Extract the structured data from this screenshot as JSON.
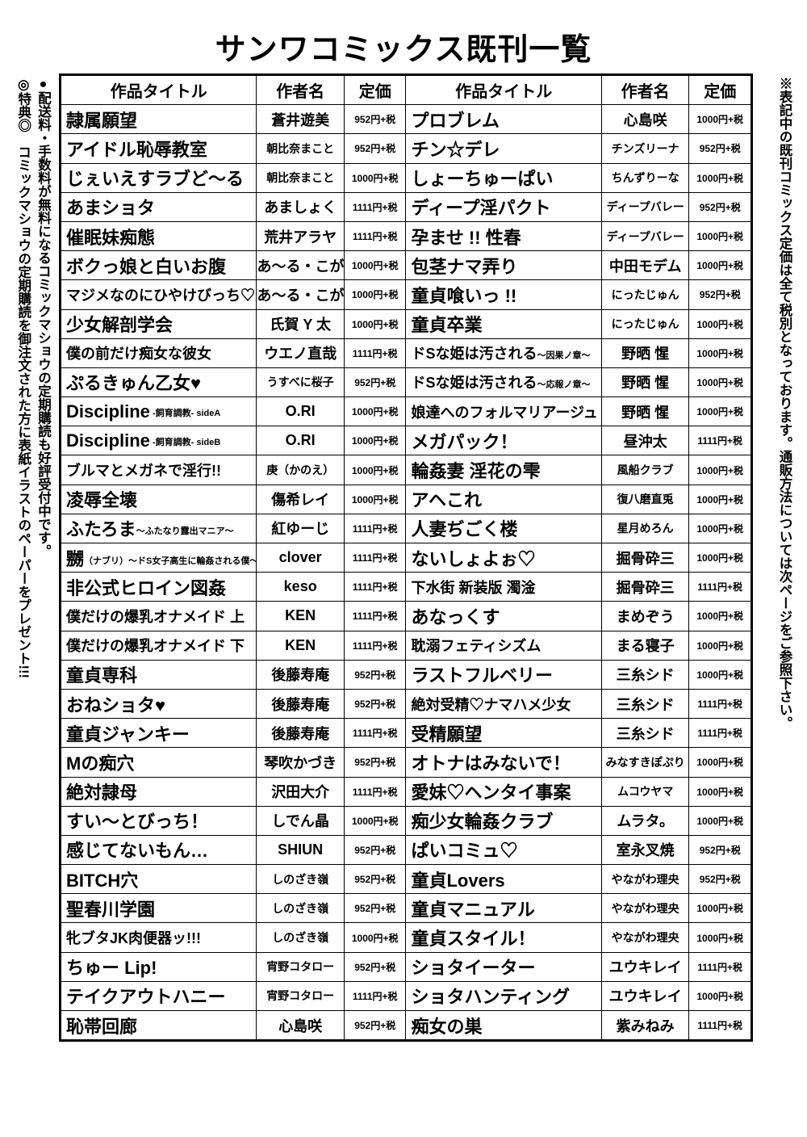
{
  "page_title": "サンワコミックス既刊一覧",
  "headers": {
    "title": "作品タイトル",
    "author": "作者名",
    "price": "定価"
  },
  "left_note_line1": "●配送料・手数料が無料になるコミックマショウの定期購読も好評受付中です。",
  "left_note_line2": "◎特典◎　コミックマショウの定期購読を御注文された方に表紙イラストのペーパーをプレゼント!!!",
  "right_note": "※表記中の既刊コミックス定価は全て税別となっております。通販方法については次ページをご参照下さい。",
  "rows": [
    {
      "l_title": "隷属願望",
      "l_author": "蒼井遊美",
      "l_price": "952円+税",
      "r_title": "プロブレム",
      "r_author": "心島咲",
      "r_price": "1000円+税"
    },
    {
      "l_title": "アイドル恥辱教室",
      "l_author": "朝比奈まこと",
      "l_author_small": true,
      "l_price": "952円+税",
      "r_title": "チン☆デレ",
      "r_author": "チンズリーナ",
      "r_author_small": true,
      "r_price": "952円+税"
    },
    {
      "l_title": "じぇいえすラブど～る",
      "l_author": "朝比奈まこと",
      "l_author_small": true,
      "l_price": "1000円+税",
      "r_title": "しょーちゅーぱい",
      "r_author": "ちんずりーな",
      "r_author_small": true,
      "r_price": "1000円+税"
    },
    {
      "l_title": "あまショタ",
      "l_author": "あましょく",
      "l_price": "1111円+税",
      "r_title": "ディープ淫パクト",
      "r_author": "ディープバレー",
      "r_author_small": true,
      "r_price": "952円+税"
    },
    {
      "l_title": "催眠妹痴態",
      "l_author": "荒井アラヤ",
      "l_price": "1111円+税",
      "r_title": "孕ませ !! 性春",
      "r_author": "ディープバレー",
      "r_author_small": true,
      "r_price": "1000円+税"
    },
    {
      "l_title": "ボクっ娘と白いお腹",
      "l_author": "あ～る・こが",
      "l_price": "1000円+税",
      "r_title": "包茎ナマ弄り",
      "r_author": "中田モデム",
      "r_price": "1000円+税"
    },
    {
      "l_title": "マジメなのにひやけびっち♡",
      "l_title_small": true,
      "l_author": "あ～る・こが",
      "l_price": "1000円+税",
      "r_title": "童貞喰いっ !!",
      "r_author": "にったじゅん",
      "r_author_small": true,
      "r_price": "952円+税"
    },
    {
      "l_title": "少女解剖学会",
      "l_author": "氏賀 Y 太",
      "l_price": "1000円+税",
      "r_title": "童貞卒業",
      "r_author": "にったじゅん",
      "r_author_small": true,
      "r_price": "1000円+税"
    },
    {
      "l_title": "僕の前だけ痴女な彼女",
      "l_title_small": true,
      "l_author": "ウエノ直哉",
      "l_price": "1111円+税",
      "r_title": "ドSな姫は汚される",
      "r_sub": "～因果ノ章～",
      "r_title_small": true,
      "r_author": "野晒 惺",
      "r_price": "1000円+税"
    },
    {
      "l_title": "ぷるきゅん乙女♥",
      "l_author": "うすべに桜子",
      "l_author_small": true,
      "l_price": "952円+税",
      "r_title": "ドSな姫は汚される",
      "r_sub": "～応報ノ章～",
      "r_title_small": true,
      "r_author": "野晒 惺",
      "r_price": "1000円+税"
    },
    {
      "l_title": "Discipline",
      "l_sub": " -飼育調教- sideA",
      "l_author": "O.RI",
      "l_price": "1000円+税",
      "r_title": "娘達へのフォルマリアージュ",
      "r_title_small": true,
      "r_author": "野晒 惺",
      "r_price": "1000円+税"
    },
    {
      "l_title": "Discipline",
      "l_sub": " -飼育調教- sideB",
      "l_author": "O.RI",
      "l_price": "1000円+税",
      "r_title": "メガパック！",
      "r_author": "昼沖太",
      "r_price": "1111円+税"
    },
    {
      "l_title": "ブルマとメガネで淫行!!",
      "l_title_small": true,
      "l_author": "庚（かのえ）",
      "l_author_small": true,
      "l_price": "1000円+税",
      "r_title": "輪姦妻 淫花の雫",
      "r_author": "風船クラブ",
      "r_author_small": true,
      "r_price": "1000円+税"
    },
    {
      "l_title": "凌辱全壊",
      "l_author": "傷希レイ",
      "l_price": "1000円+税",
      "r_title": "アヘこれ",
      "r_author": "復八磨直兎",
      "r_author_small": true,
      "r_price": "1000円+税"
    },
    {
      "l_title": "ふたろま",
      "l_sub": "～ふたなり露出マニア～",
      "l_author": "紅ゆーじ",
      "l_price": "1111円+税",
      "r_title": "人妻ぢごく楼",
      "r_author": "星月めろん",
      "r_author_small": true,
      "r_price": "1000円+税"
    },
    {
      "l_title": "嬲",
      "l_sub": "（ナブリ）～ドS女子高生に輪姦される僕～",
      "l_author": "clover",
      "l_price": "1111円+税",
      "r_title": "ないしょよぉ♡",
      "r_author": "掘骨砕三",
      "r_price": "1000円+税"
    },
    {
      "l_title": "非公式ヒロイン図姦",
      "l_author": "keso",
      "l_price": "1111円+税",
      "r_title": "下水街 新装版 濁淦",
      "r_title_small": true,
      "r_author": "掘骨砕三",
      "r_price": "1111円+税"
    },
    {
      "l_title": "僕だけの爆乳オナメイド 上",
      "l_title_small": true,
      "l_author": "KEN",
      "l_price": "1111円+税",
      "r_title": "あなっくす",
      "r_author": "まめぞう",
      "r_price": "1000円+税"
    },
    {
      "l_title": "僕だけの爆乳オナメイド 下",
      "l_title_small": true,
      "l_author": "KEN",
      "l_price": "1111円+税",
      "r_title": "耽溺フェティシズム",
      "r_title_small": true,
      "r_author": "まる寝子",
      "r_price": "1000円+税"
    },
    {
      "l_title": "童貞専科",
      "l_author": "後藤寿庵",
      "l_price": "952円+税",
      "r_title": "ラストフルベリー",
      "r_author": "三糸シド",
      "r_price": "1000円+税"
    },
    {
      "l_title": "おねショタ♥",
      "l_author": "後藤寿庵",
      "l_price": "952円+税",
      "r_title": "絶対受精♡ナマハメ少女",
      "r_title_small": true,
      "r_author": "三糸シド",
      "r_price": "1111円+税"
    },
    {
      "l_title": "童貞ジャンキー",
      "l_author": "後藤寿庵",
      "l_price": "1111円+税",
      "r_title": "受精願望",
      "r_author": "三糸シド",
      "r_price": "1111円+税"
    },
    {
      "l_title": "Mの痴穴",
      "l_author": "琴吹かづき",
      "l_price": "952円+税",
      "r_title": "オトナはみないで！",
      "r_author": "みなすきぽぷり",
      "r_author_small": true,
      "r_price": "1000円+税"
    },
    {
      "l_title": "絶対隷母",
      "l_author": "沢田大介",
      "l_price": "1111円+税",
      "r_title": "愛妹♡ヘンタイ事案",
      "r_author": "ムコウヤマ",
      "r_author_small": true,
      "r_price": "1000円+税"
    },
    {
      "l_title": "すい～とびっち！",
      "l_author": "しでん晶",
      "l_price": "1000円+税",
      "r_title": "痴少女輪姦クラブ",
      "r_author": "ムラタ。",
      "r_price": "1000円+税"
    },
    {
      "l_title": "感じてないもん…",
      "l_author": "SHIUN",
      "l_price": "952円+税",
      "r_title": "ぱいコミュ♡",
      "r_author": "室永叉焼",
      "r_price": "952円+税"
    },
    {
      "l_title": "BITCH穴",
      "l_author": "しのざき嶺",
      "l_author_small": true,
      "l_price": "952円+税",
      "r_title": "童貞Lovers",
      "r_author": "やながわ理央",
      "r_author_small": true,
      "r_price": "952円+税"
    },
    {
      "l_title": "聖春川学園",
      "l_author": "しのざき嶺",
      "l_author_small": true,
      "l_price": "952円+税",
      "r_title": "童貞マニュアル",
      "r_author": "やながわ理央",
      "r_author_small": true,
      "r_price": "1000円+税"
    },
    {
      "l_title": "牝ブタJK肉便器ッ!!!",
      "l_title_small": true,
      "l_author": "しのざき嶺",
      "l_author_small": true,
      "l_price": "1000円+税",
      "r_title": "童貞スタイル！",
      "r_author": "やながわ理央",
      "r_author_small": true,
      "r_price": "1000円+税"
    },
    {
      "l_title": "ちゅー Lip!",
      "l_author": "宵野コタロー",
      "l_author_small": true,
      "l_price": "952円+税",
      "r_title": "ショタイーター",
      "r_author": "ユウキレイ",
      "r_price": "1111円+税"
    },
    {
      "l_title": "テイクアウトハニー",
      "l_author": "宵野コタロー",
      "l_author_small": true,
      "l_price": "1111円+税",
      "r_title": "ショタハンティング",
      "r_author": "ユウキレイ",
      "r_price": "1000円+税"
    },
    {
      "l_title": "恥帯回廊",
      "l_author": "心島咲",
      "l_price": "952円+税",
      "r_title": "痴女の巣",
      "r_author": "紫みねみ",
      "r_price": "1111円+税"
    }
  ]
}
